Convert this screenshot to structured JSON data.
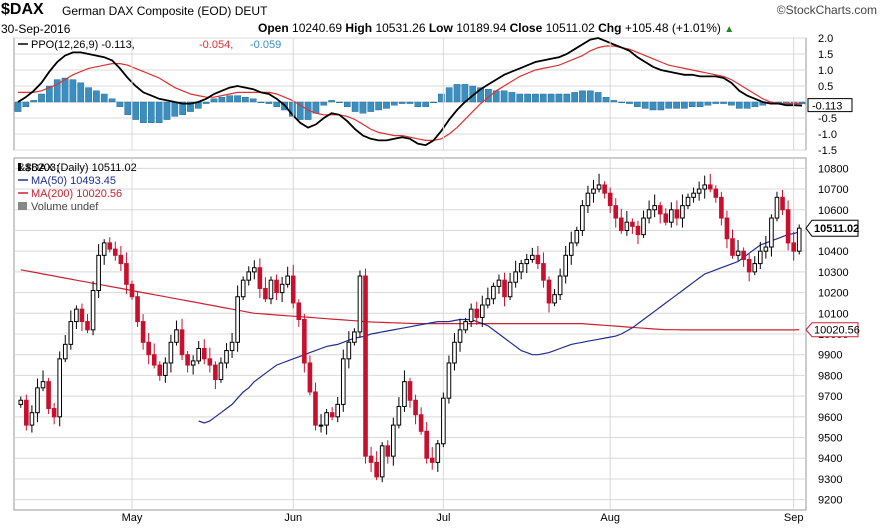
{
  "header": {
    "symbol": "$DAX",
    "name": "German DAX Composite (EOD)",
    "exchange": "DEUT",
    "brand": "StockCharts.com",
    "date": "30-Sep-2016",
    "open_label": "Open",
    "open": "10240.69",
    "high_label": "High",
    "high": "10531.26",
    "low_label": "Low",
    "low": "10189.94",
    "close_label": "Close",
    "close": "10511.02",
    "chg_label": "Chg",
    "chg": "+105.48 (+1.01%)"
  },
  "colors": {
    "up": "#000000",
    "down": "#c8102e",
    "ma50": "#1f2f8f",
    "ma200": "#cc2233",
    "ppo_line": "#000000",
    "ppo_signal": "#e03030",
    "ppo_hist": "#3a8fc0",
    "grid": "#d8d8d8"
  },
  "chart_data": [
    {
      "type": "line",
      "title": "PPO(12,26,9) -0.113, -0.054, -0.059",
      "legend": {
        "label": "PPO(12,26,9)",
        "values": [
          "-0.113",
          "-0.054",
          "-0.059"
        ]
      },
      "ylim": [
        -1.5,
        2.0
      ],
      "yticks": [
        "2.0",
        "1.5",
        "1.0",
        "0.5",
        "0.0",
        "-0.5",
        "-1.0",
        "-1.5"
      ],
      "current_label": "-0.113",
      "grid": true,
      "series": [
        {
          "name": "PPO",
          "role": "line",
          "values": [
            0.0,
            0.15,
            0.35,
            0.6,
            0.95,
            1.25,
            1.45,
            1.55,
            1.55,
            1.5,
            1.45,
            1.4,
            1.3,
            1.05,
            0.75,
            0.5,
            0.3,
            0.2,
            0.1,
            0.05,
            0.0,
            -0.05,
            -0.05,
            0.0,
            0.1,
            0.25,
            0.35,
            0.45,
            0.5,
            0.45,
            0.4,
            0.3,
            0.25,
            0.1,
            -0.1,
            -0.4,
            -0.65,
            -0.8,
            -0.7,
            -0.5,
            -0.35,
            -0.4,
            -0.6,
            -0.85,
            -1.05,
            -1.15,
            -1.2,
            -1.2,
            -1.15,
            -1.1,
            -1.15,
            -1.3,
            -1.35,
            -1.2,
            -0.9,
            -0.55,
            -0.25,
            0.0,
            0.2,
            0.4,
            0.55,
            0.7,
            0.85,
            0.95,
            1.05,
            1.15,
            1.25,
            1.3,
            1.35,
            1.4,
            1.5,
            1.65,
            1.8,
            1.95,
            2.0,
            1.9,
            1.8,
            1.7,
            1.6,
            1.4,
            1.25,
            1.1,
            1.0,
            0.95,
            0.9,
            0.85,
            0.85,
            0.8,
            0.8,
            0.8,
            0.75,
            0.6,
            0.35,
            0.2,
            0.1,
            0.0,
            -0.05,
            -0.05,
            -0.1,
            -0.1,
            -0.113
          ]
        },
        {
          "name": "Signal",
          "role": "signal",
          "values": [
            0.3,
            0.3,
            0.3,
            0.35,
            0.45,
            0.55,
            0.7,
            0.85,
            0.95,
            1.05,
            1.1,
            1.15,
            1.2,
            1.2,
            1.15,
            1.05,
            0.95,
            0.85,
            0.75,
            0.6,
            0.45,
            0.35,
            0.25,
            0.2,
            0.15,
            0.15,
            0.2,
            0.25,
            0.3,
            0.3,
            0.3,
            0.3,
            0.3,
            0.25,
            0.15,
            0.05,
            -0.1,
            -0.25,
            -0.35,
            -0.4,
            -0.4,
            -0.4,
            -0.45,
            -0.55,
            -0.7,
            -0.85,
            -0.95,
            -1.0,
            -1.05,
            -1.05,
            -1.1,
            -1.15,
            -1.2,
            -1.2,
            -1.15,
            -1.0,
            -0.8,
            -0.55,
            -0.3,
            -0.05,
            0.15,
            0.35,
            0.5,
            0.65,
            0.8,
            0.9,
            1.0,
            1.05,
            1.1,
            1.15,
            1.25,
            1.35,
            1.45,
            1.6,
            1.7,
            1.75,
            1.75,
            1.7,
            1.65,
            1.55,
            1.45,
            1.35,
            1.25,
            1.15,
            1.1,
            1.05,
            1.0,
            0.95,
            0.9,
            0.85,
            0.8,
            0.7,
            0.55,
            0.4,
            0.25,
            0.1,
            0.0,
            -0.05,
            -0.05,
            -0.05,
            -0.054
          ]
        }
      ]
    },
    {
      "type": "candlestick",
      "title": "$DAX (Daily) 10511.02",
      "ylim": [
        9150,
        10850
      ],
      "yticks": [
        "10800",
        "10700",
        "10600",
        "10500",
        "10400",
        "10300",
        "10200",
        "10100",
        "10000",
        "9900",
        "9800",
        "9700",
        "9600",
        "9500",
        "9400",
        "9300",
        "9200"
      ],
      "xticks": [
        "May",
        "Jun",
        "Jul",
        "Aug",
        "Sep"
      ],
      "xtick_index": [
        20,
        49,
        76,
        106,
        139
      ],
      "grid": true,
      "price_label": "10511.02",
      "ma200_label": "10020.56",
      "legend": [
        {
          "label": "$DAX (Daily) 10511.02"
        },
        {
          "label": "MA(50) 10493.45"
        },
        {
          "label": "MA(200) 10020.56"
        },
        {
          "label": "Volume undef"
        }
      ],
      "closes": [
        9680,
        9560,
        9620,
        9740,
        9770,
        9640,
        9600,
        9880,
        9950,
        10060,
        10120,
        10060,
        10020,
        10210,
        10380,
        10440,
        10410,
        10380,
        10340,
        10240,
        10180,
        10060,
        9960,
        9900,
        9850,
        9800,
        9860,
        9960,
        10020,
        9900,
        9850,
        9870,
        9930,
        9880,
        9850,
        9780,
        9860,
        9920,
        9960,
        10180,
        10260,
        10300,
        10320,
        10220,
        10170,
        10260,
        10200,
        10240,
        10280,
        10150,
        10070,
        9860,
        9720,
        9560,
        9560,
        9620,
        9600,
        9660,
        9880,
        9960,
        10010,
        10280,
        9410,
        9380,
        9310,
        9460,
        9410,
        9560,
        9650,
        9770,
        9680,
        9610,
        9530,
        9400,
        9380,
        9470,
        9690,
        9860,
        9960,
        10020,
        10060,
        10120,
        10080,
        10140,
        10170,
        10230,
        10260,
        10180,
        10250,
        10300,
        10340,
        10360,
        10380,
        10340,
        10260,
        10150,
        10190,
        10280,
        10380,
        10440,
        10500,
        10620,
        10680,
        10700,
        10720,
        10680,
        10620,
        10560,
        10500,
        10540,
        10520,
        10480,
        10560,
        10600,
        10620,
        10580,
        10540,
        10600,
        10560,
        10620,
        10660,
        10680,
        10700,
        10720,
        10700,
        10660,
        10560,
        10460,
        10380,
        10400,
        10360,
        10300,
        10340,
        10400,
        10420,
        10560,
        10660,
        10600,
        10440,
        10400,
        10511
      ],
      "ma50": [
        9580,
        9570,
        9580,
        9600,
        9620,
        9640,
        9660,
        9690,
        9720,
        9740,
        9770,
        9790,
        9810,
        9830,
        9850,
        9860,
        9870,
        9880,
        9890,
        9900,
        9910,
        9920,
        9930,
        9940,
        9945,
        9950,
        9960,
        9970,
        9980,
        9985,
        9990,
        10000,
        10005,
        10010,
        10015,
        10020,
        10025,
        10030,
        10035,
        10040,
        10045,
        10050,
        10055,
        10060,
        10060,
        10060,
        10065,
        10070,
        10070,
        10070,
        10060,
        10050,
        10040,
        10020,
        10000,
        9980,
        9960,
        9940,
        9920,
        9910,
        9900,
        9900,
        9905,
        9910,
        9920,
        9930,
        9940,
        9950,
        9955,
        9960,
        9965,
        9970,
        9975,
        9980,
        9985,
        9990,
        10000,
        10015,
        10030,
        10050,
        10070,
        10090,
        10110,
        10130,
        10150,
        10170,
        10190,
        10210,
        10230,
        10250,
        10270,
        10290,
        10300,
        10310,
        10320,
        10330,
        10340,
        10350,
        10370,
        10390,
        10410,
        10430,
        10440,
        10450,
        10460,
        10470,
        10480,
        10485,
        10493
      ],
      "ma200": [
        10310,
        10305,
        10300,
        10295,
        10290,
        10285,
        10280,
        10275,
        10270,
        10265,
        10260,
        10255,
        10250,
        10245,
        10240,
        10235,
        10230,
        10225,
        10220,
        10215,
        10210,
        10205,
        10200,
        10195,
        10190,
        10185,
        10180,
        10175,
        10170,
        10165,
        10160,
        10155,
        10150,
        10145,
        10140,
        10135,
        10130,
        10125,
        10120,
        10115,
        10110,
        10105,
        10100,
        10098,
        10096,
        10094,
        10092,
        10090,
        10088,
        10086,
        10084,
        10082,
        10080,
        10078,
        10076,
        10074,
        10072,
        10070,
        10068,
        10066,
        10064,
        10062,
        10060,
        10058,
        10057,
        10056,
        10055,
        10054,
        10053,
        10052,
        10051,
        10050,
        10050,
        10050,
        10050,
        10050,
        10050,
        10050,
        10050,
        10050,
        10050,
        10050,
        10050,
        10050,
        10050,
        10050,
        10050,
        10050,
        10050,
        10050,
        10050,
        10050,
        10050,
        10050,
        10050,
        10050,
        10050,
        10050,
        10050,
        10050,
        10050,
        10050,
        10048,
        10046,
        10044,
        10042,
        10040,
        10038,
        10036,
        10034,
        10032,
        10030,
        10028,
        10026,
        10024,
        10022,
        10021,
        10021,
        10021,
        10020,
        10020,
        10020,
        10020,
        10020,
        10020,
        10020,
        10020,
        10020,
        10020,
        10020,
        10020,
        10020,
        10020,
        10020,
        10020,
        10020,
        10020,
        10020,
        10020,
        10020,
        10020.56
      ]
    }
  ]
}
